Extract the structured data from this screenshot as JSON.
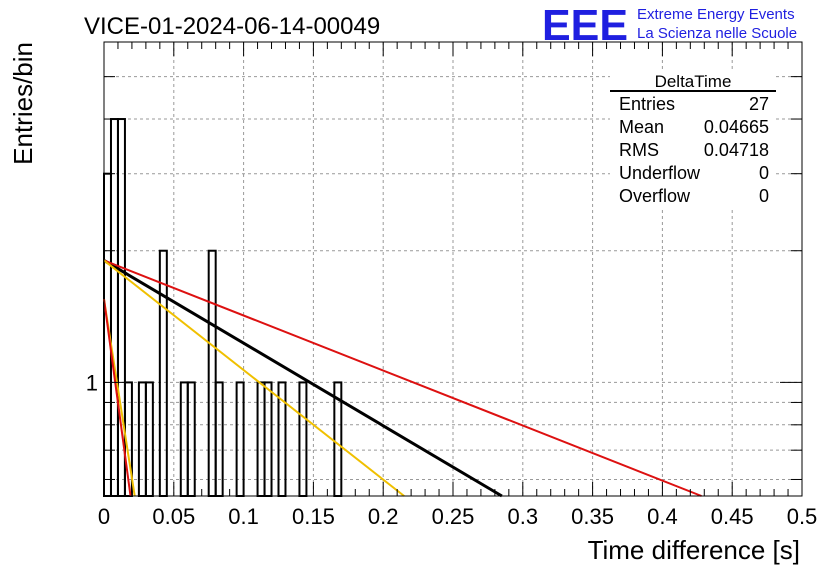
{
  "title": "VICE-01-2024-06-14-00049",
  "logo": {
    "mark": "EEE",
    "line1": "Extreme Energy Events",
    "line2": "La Scienza nelle Scuole",
    "color": "#1f1fe0"
  },
  "stats": {
    "name": "DeltaTime",
    "rows": [
      {
        "label": "Entries",
        "value": "27"
      },
      {
        "label": "Mean",
        "value": "0.04665"
      },
      {
        "label": "RMS",
        "value": "0.04718"
      },
      {
        "label": "Underflow",
        "value": "0"
      },
      {
        "label": "Overflow",
        "value": "0"
      }
    ]
  },
  "chart_data": {
    "type": "histogram",
    "title": "VICE-01-2024-06-14-00049",
    "xlabel": "Time difference [s]",
    "ylabel": "Entries/bin",
    "xlim": [
      0,
      0.5
    ],
    "ylim_log": [
      0.55,
      6
    ],
    "yscale": "log",
    "grid": true,
    "x_ticks": [
      "0",
      "0.05",
      "0.1",
      "0.15",
      "0.2",
      "0.25",
      "0.3",
      "0.35",
      "0.4",
      "0.45",
      "0.5"
    ],
    "y_ticks": [
      "1"
    ],
    "bin_width": 0.005,
    "bins": [
      {
        "x": 0.0,
        "count": 3
      },
      {
        "x": 0.005,
        "count": 4
      },
      {
        "x": 0.01,
        "count": 4
      },
      {
        "x": 0.015,
        "count": 1
      },
      {
        "x": 0.025,
        "count": 1
      },
      {
        "x": 0.03,
        "count": 1
      },
      {
        "x": 0.04,
        "count": 2
      },
      {
        "x": 0.055,
        "count": 1
      },
      {
        "x": 0.06,
        "count": 1
      },
      {
        "x": 0.075,
        "count": 2
      },
      {
        "x": 0.08,
        "count": 1
      },
      {
        "x": 0.095,
        "count": 1
      },
      {
        "x": 0.11,
        "count": 1
      },
      {
        "x": 0.115,
        "count": 1
      },
      {
        "x": 0.125,
        "count": 1
      },
      {
        "x": 0.14,
        "count": 1
      },
      {
        "x": 0.165,
        "count": 1
      }
    ],
    "fits": [
      {
        "color": "#000000",
        "points": [
          [
            0,
            1.9
          ],
          [
            0.285,
            0.55
          ]
        ]
      },
      {
        "color": "#dd1111",
        "points": [
          [
            0,
            1.9
          ],
          [
            0.428,
            0.55
          ]
        ]
      },
      {
        "color": "#f0c000",
        "points": [
          [
            0,
            1.9
          ],
          [
            0.215,
            0.55
          ]
        ]
      },
      {
        "color": "#f0c000",
        "points": [
          [
            0,
            1.55
          ],
          [
            0.022,
            0.55
          ]
        ]
      },
      {
        "color": "#dd1111",
        "points": [
          [
            0.0,
            1.55
          ],
          [
            0.019,
            0.55
          ]
        ]
      }
    ]
  }
}
